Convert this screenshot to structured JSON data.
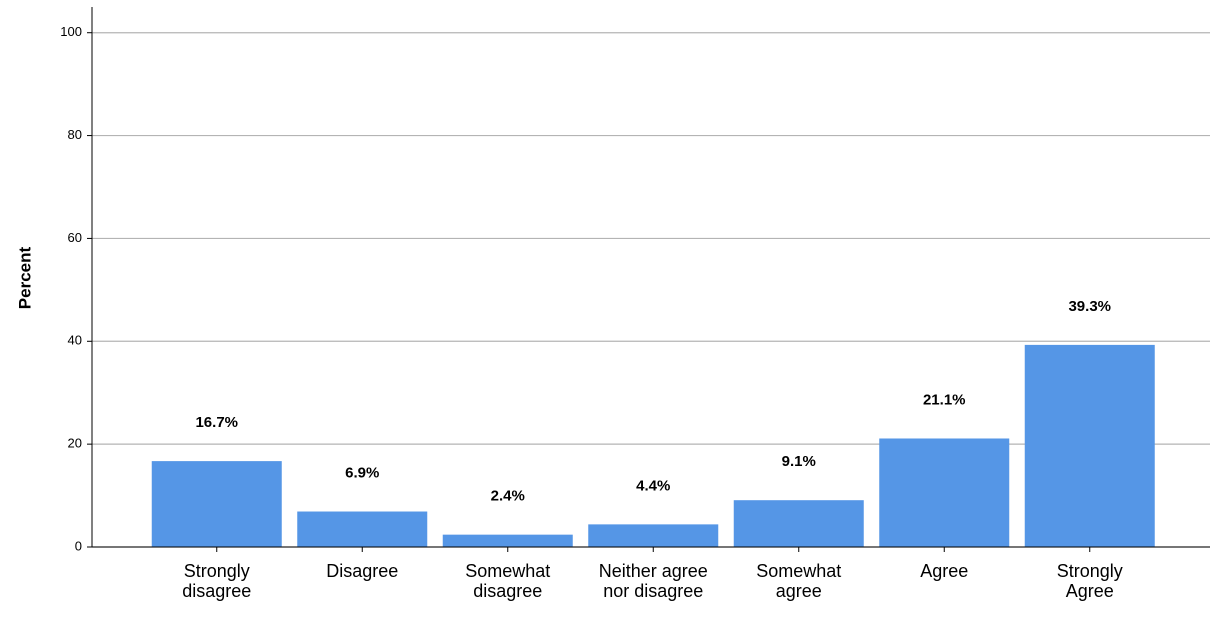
{
  "chart_data": {
    "type": "bar",
    "y_label": "Percent",
    "categories": [
      "Strongly disagree",
      "Disagree",
      "Somewhat disagree",
      "Neither agree nor disagree",
      "Somewhat agree",
      "Agree",
      "Strongly Agree"
    ],
    "values": [
      16.7,
      6.9,
      2.4,
      4.4,
      9.1,
      21.1,
      39.3
    ],
    "value_labels": [
      "16.7%",
      "6.9%",
      "2.4%",
      "4.4%",
      "9.1%",
      "21.1%",
      "39.3%"
    ],
    "color": "#5596e6",
    "ylim": [
      0,
      105
    ],
    "yticks": [
      0,
      20,
      40,
      60,
      80,
      100
    ],
    "grid": true
  }
}
